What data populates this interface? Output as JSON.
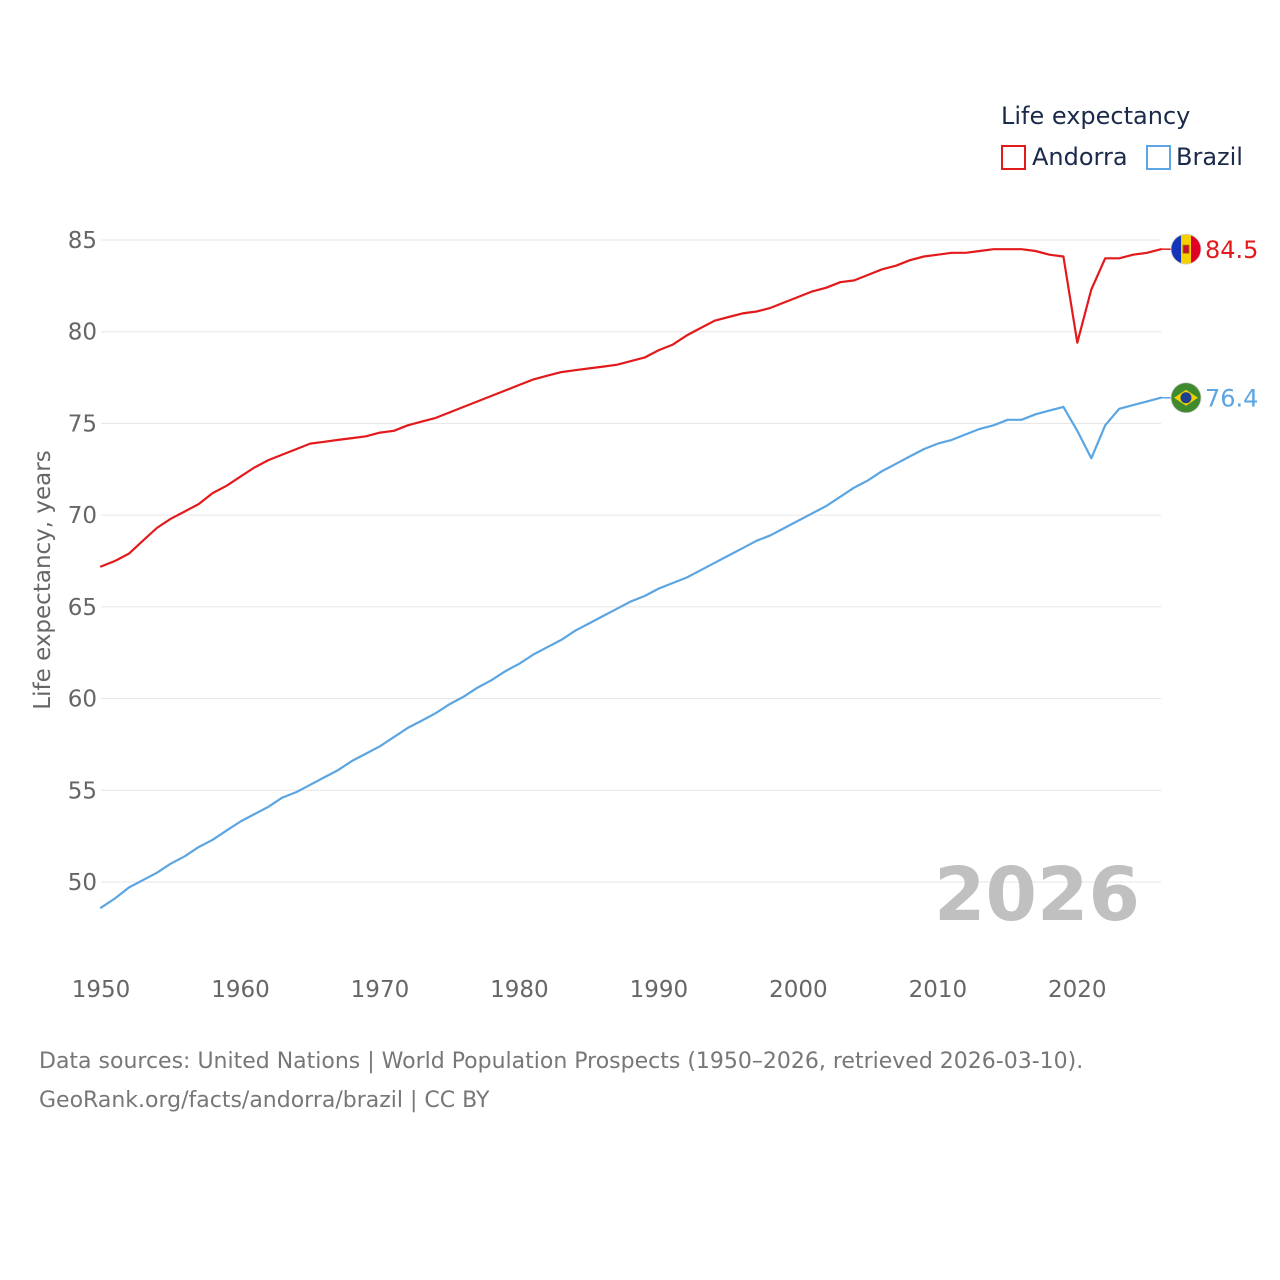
{
  "chart_data": {
    "type": "line",
    "legend_title": "Life expectancy",
    "ylabel": "Life expectancy, years",
    "xlabel": "",
    "xlim": [
      1950,
      2026
    ],
    "ylim": [
      47,
      87
    ],
    "x_ticks": [
      "1950",
      "1960",
      "1970",
      "1980",
      "1990",
      "2000",
      "2010",
      "2020"
    ],
    "y_ticks": [
      "50",
      "55",
      "60",
      "65",
      "70",
      "75",
      "80",
      "85"
    ],
    "year_watermark": "2026",
    "legend_placement": "top-right",
    "series": [
      {
        "name": "Andorra",
        "color": "#e31a1c",
        "end_label": "84.5",
        "icon": "andorra-flag-icon",
        "x": [
          1950,
          1951,
          1952,
          1953,
          1954,
          1955,
          1956,
          1957,
          1958,
          1959,
          1960,
          1961,
          1962,
          1963,
          1964,
          1965,
          1966,
          1967,
          1968,
          1969,
          1970,
          1971,
          1972,
          1973,
          1974,
          1975,
          1976,
          1977,
          1978,
          1979,
          1980,
          1981,
          1982,
          1983,
          1984,
          1985,
          1986,
          1987,
          1988,
          1989,
          1990,
          1991,
          1992,
          1993,
          1994,
          1995,
          1996,
          1997,
          1998,
          1999,
          2000,
          2001,
          2002,
          2003,
          2004,
          2005,
          2006,
          2007,
          2008,
          2009,
          2010,
          2011,
          2012,
          2013,
          2014,
          2015,
          2016,
          2017,
          2018,
          2019,
          2020,
          2021,
          2022,
          2023,
          2024,
          2025,
          2026
        ],
        "values": [
          67.2,
          67.5,
          67.9,
          68.6,
          69.3,
          69.8,
          70.2,
          70.6,
          71.2,
          71.6,
          72.1,
          72.6,
          73.0,
          73.3,
          73.6,
          73.9,
          74.0,
          74.1,
          74.2,
          74.3,
          74.5,
          74.6,
          74.9,
          75.1,
          75.3,
          75.6,
          75.9,
          76.2,
          76.5,
          76.8,
          77.1,
          77.4,
          77.6,
          77.8,
          77.9,
          78.0,
          78.1,
          78.2,
          78.4,
          78.6,
          79.0,
          79.3,
          79.8,
          80.2,
          80.6,
          80.8,
          81.0,
          81.1,
          81.3,
          81.6,
          81.9,
          82.2,
          82.4,
          82.7,
          82.8,
          83.1,
          83.4,
          83.6,
          83.9,
          84.1,
          84.2,
          84.3,
          84.3,
          84.4,
          84.5,
          84.5,
          84.5,
          84.4,
          84.2,
          84.1,
          79.4,
          82.3,
          84.0,
          84.0,
          84.2,
          84.3,
          84.5
        ]
      },
      {
        "name": "Brazil",
        "color": "#5aa5e2",
        "end_label": "76.4",
        "icon": "brazil-flag-icon",
        "x": [
          1950,
          1951,
          1952,
          1953,
          1954,
          1955,
          1956,
          1957,
          1958,
          1959,
          1960,
          1961,
          1962,
          1963,
          1964,
          1965,
          1966,
          1967,
          1968,
          1969,
          1970,
          1971,
          1972,
          1973,
          1974,
          1975,
          1976,
          1977,
          1978,
          1979,
          1980,
          1981,
          1982,
          1983,
          1984,
          1985,
          1986,
          1987,
          1988,
          1989,
          1990,
          1991,
          1992,
          1993,
          1994,
          1995,
          1996,
          1997,
          1998,
          1999,
          2000,
          2001,
          2002,
          2003,
          2004,
          2005,
          2006,
          2007,
          2008,
          2009,
          2010,
          2011,
          2012,
          2013,
          2014,
          2015,
          2016,
          2017,
          2018,
          2019,
          2020,
          2021,
          2022,
          2023,
          2024,
          2025,
          2026
        ],
        "values": [
          48.6,
          49.1,
          49.7,
          50.1,
          50.5,
          51.0,
          51.4,
          51.9,
          52.3,
          52.8,
          53.3,
          53.7,
          54.1,
          54.6,
          54.9,
          55.3,
          55.7,
          56.1,
          56.6,
          57.0,
          57.4,
          57.9,
          58.4,
          58.8,
          59.2,
          59.7,
          60.1,
          60.6,
          61.0,
          61.5,
          61.9,
          62.4,
          62.8,
          63.2,
          63.7,
          64.1,
          64.5,
          64.9,
          65.3,
          65.6,
          66.0,
          66.3,
          66.6,
          67.0,
          67.4,
          67.8,
          68.2,
          68.6,
          68.9,
          69.3,
          69.7,
          70.1,
          70.5,
          71.0,
          71.5,
          71.9,
          72.4,
          72.8,
          73.2,
          73.6,
          73.9,
          74.1,
          74.4,
          74.7,
          74.9,
          75.2,
          75.2,
          75.5,
          75.7,
          75.9,
          74.6,
          73.1,
          74.9,
          75.8,
          76.0,
          76.2,
          76.4
        ]
      }
    ]
  },
  "source": {
    "line1": "Data sources: United Nations | World Population Prospects (1950–2026, retrieved 2026-03-10).",
    "line2": "GeoRank.org/facts/andorra/brazil | CC BY"
  },
  "colors": {
    "grid": "#e6e6e6",
    "axis_text": "#666666",
    "legend_text": "#1a2a4a",
    "watermark": "#c0c0c0",
    "source_text": "#777777"
  }
}
